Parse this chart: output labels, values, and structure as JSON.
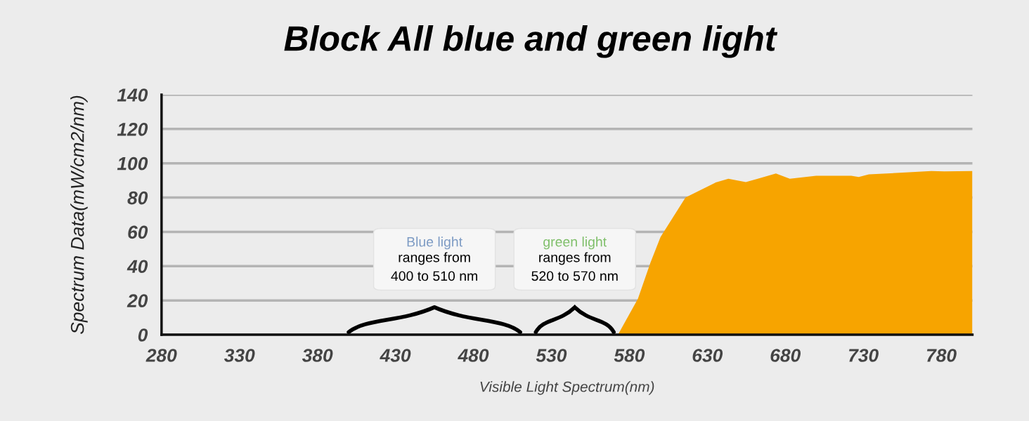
{
  "chart_data": {
    "type": "area",
    "title": "Block All blue and green light",
    "xlabel": "Visible Light Spectrum(nm)",
    "ylabel": "Spectrum Data(mW/cm2/nm)",
    "x": [
      280,
      572.7,
      585.5,
      593.5,
      600,
      616,
      635.4,
      643.5,
      654.7,
      674,
      682.9,
      699.8,
      722.3,
      727.1,
      733.6,
      773.7,
      782,
      800
    ],
    "series": [
      {
        "color": "#f7a400",
        "values": [
          0,
          0,
          21,
          42,
          57,
          80,
          88.8,
          91,
          89,
          94,
          91,
          92.7,
          92.7,
          92,
          93.5,
          95.5,
          95.3,
          95.5
        ]
      }
    ],
    "xlim": [
      280,
      800
    ],
    "ylim": [
      0,
      140
    ],
    "xticks": [
      280,
      330,
      380,
      430,
      480,
      530,
      580,
      630,
      680,
      730,
      780
    ],
    "yticks": [
      0,
      20,
      40,
      60,
      80,
      100,
      120,
      140
    ],
    "grid": "y",
    "annotations": [
      "Blue light",
      "ranges from\n400 to 510 nm",
      "green light",
      "ranges from\n520 to 570 nm"
    ]
  }
}
